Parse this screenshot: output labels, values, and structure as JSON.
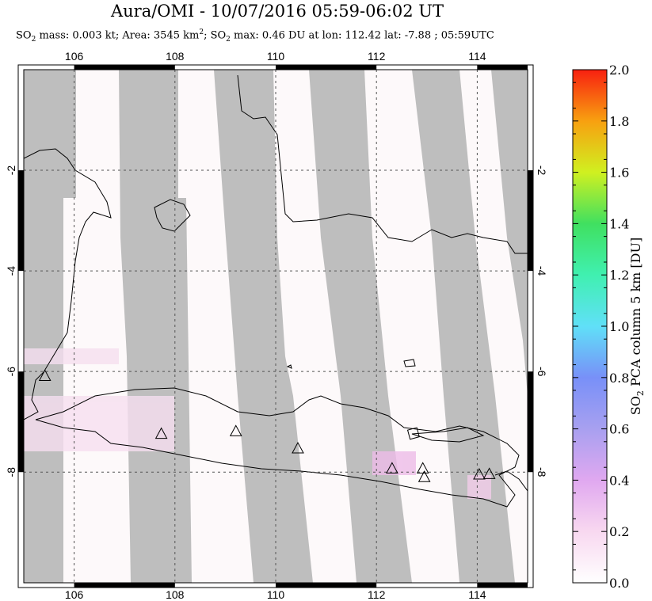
{
  "header": {
    "title": "Aura/OMI - 10/07/2016 05:59-06:02 UT",
    "subtitle_prefix": "SO",
    "subtitle_mass": " mass: 0.003 kt; Area: 3545 km",
    "subtitle_rest": "; SO",
    "subtitle_tail": " max: 0.46 DU at lon: 112.42 lat: -7.88 ; 05:59UTC",
    "sub2": "2",
    "sup2": "2"
  },
  "map": {
    "lon_ticks": [
      "106",
      "108",
      "110",
      "112",
      "114"
    ],
    "lat_ticks": [
      "-2",
      "-4",
      "-6",
      "-8"
    ],
    "lon_range": [
      105,
      115
    ],
    "lat_range": [
      -10.2,
      0.0
    ],
    "volcanoes": [
      {
        "lon": 105.42,
        "lat": -6.1
      },
      {
        "lon": 107.73,
        "lat": -7.25
      },
      {
        "lon": 109.21,
        "lat": -7.2
      },
      {
        "lon": 110.44,
        "lat": -7.54
      },
      {
        "lon": 112.31,
        "lat": -7.94
      },
      {
        "lon": 112.92,
        "lat": -7.94
      },
      {
        "lon": 112.95,
        "lat": -8.11
      },
      {
        "lon": 114.04,
        "lat": -8.06
      },
      {
        "lon": 114.24,
        "lat": -8.05
      }
    ],
    "colors": {
      "no_data": "#bebebe",
      "land": "#fdf9fa",
      "coast": "#000000"
    }
  },
  "colorbar": {
    "label_prefix": "SO",
    "label_sub": "2",
    "label_rest": " PCA column 5 km [DU]",
    "ticks": [
      "0.0",
      "0.2",
      "0.4",
      "0.6",
      "0.8",
      "1.0",
      "1.2",
      "1.4",
      "1.6",
      "1.8",
      "2.0"
    ],
    "range": [
      0,
      2
    ]
  }
}
